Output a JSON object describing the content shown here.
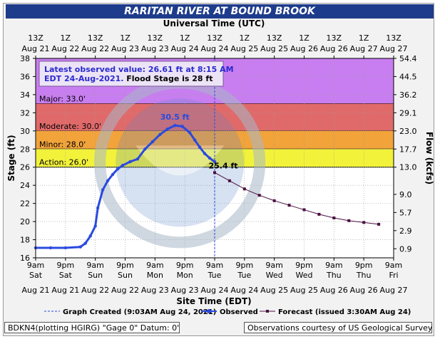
{
  "title": "RARITAN RIVER AT BOUND BROOK",
  "top_axis_title": "Universal Time (UTC)",
  "bottom_axis_title": "Site Time (EDT)",
  "left_axis_title": "Stage (ft)",
  "right_axis_title": "Flow (kcfs)",
  "annotation": {
    "line1": "Latest observed value: 26.61 ft at 8:15 AM",
    "line2_a": "EDT 24-Aug-2021. ",
    "line2_b": "Flood Stage is 28 ft"
  },
  "bands": [
    {
      "label": "Major: 33.0'",
      "from": 33,
      "to": 38,
      "color": "#c87ef0"
    },
    {
      "label": "Moderate: 30.0'",
      "from": 30,
      "to": 33,
      "color": "#e06a6a"
    },
    {
      "label": "Minor: 28.0'",
      "from": 28,
      "to": 30,
      "color": "#f2a33a"
    },
    {
      "label": "Action: 26.0'",
      "from": 26,
      "to": 28,
      "color": "#f2f23a"
    }
  ],
  "peak_label": "30.5 ft",
  "forecast_start_label": "25.4 ft",
  "legend": {
    "graph_created": "Graph Created (9:03AM Aug 24, 2021)",
    "observed": "Observed",
    "forecast": "Forecast (issued 3:30AM Aug 24)"
  },
  "footer_left": "BDKN4(plotting HGIRG) \"Gage 0\" Datum: 0'",
  "footer_right": "Observations courtesy of US Geological Survey",
  "colors": {
    "observed": "#2a4adf",
    "forecast": "#4a1040",
    "title_bg": "#1e3c8c"
  },
  "chart_data": {
    "type": "line",
    "xlabel": "Site Time (EDT)",
    "ylabel": "Stage (ft)",
    "ylabel_right": "Flow (kcfs)",
    "ylim": [
      16,
      38
    ],
    "x_range_hours_from_aug21_9am": [
      0,
      144
    ],
    "y_ticks": [
      16,
      18,
      20,
      22,
      24,
      26,
      28,
      30,
      32,
      34,
      36,
      38
    ],
    "right_ticks": [
      {
        "stage": 17.0,
        "label": "0.9"
      },
      {
        "stage": 19.0,
        "label": "2.9"
      },
      {
        "stage": 21.0,
        "label": "5.7"
      },
      {
        "stage": 23.0,
        "label": "9.0"
      },
      {
        "stage": 26.0,
        "label": "13.0"
      },
      {
        "stage": 28.0,
        "label": "17.7"
      },
      {
        "stage": 30.0,
        "label": "23.0"
      },
      {
        "stage": 32.0,
        "label": "29.1"
      },
      {
        "stage": 34.0,
        "label": "36.2"
      },
      {
        "stage": 36.0,
        "label": "44.5"
      },
      {
        "stage": 38.0,
        "label": "54.4"
      }
    ],
    "bottom_ticks": [
      {
        "time": "9am",
        "day": "Sat",
        "date": "Aug 21"
      },
      {
        "time": "9pm",
        "day": "Sat",
        "date": "Aug 21"
      },
      {
        "time": "9am",
        "day": "Sun",
        "date": "Aug 22"
      },
      {
        "time": "9pm",
        "day": "Sun",
        "date": "Aug 22"
      },
      {
        "time": "9am",
        "day": "Mon",
        "date": "Aug 23"
      },
      {
        "time": "9pm",
        "day": "Mon",
        "date": "Aug 23"
      },
      {
        "time": "9am",
        "day": "Tue",
        "date": "Aug 24"
      },
      {
        "time": "9pm",
        "day": "Tue",
        "date": "Aug 24"
      },
      {
        "time": "9am",
        "day": "Wed",
        "date": "Aug 25"
      },
      {
        "time": "9pm",
        "day": "Wed",
        "date": "Aug 25"
      },
      {
        "time": "9am",
        "day": "Thu",
        "date": "Aug 26"
      },
      {
        "time": "9pm",
        "day": "Thu",
        "date": "Aug 26"
      },
      {
        "time": "9am",
        "day": "Fri",
        "date": "Aug 27"
      }
    ],
    "top_ticks": [
      {
        "time": "13Z",
        "date": "Aug 21"
      },
      {
        "time": "1Z",
        "date": "Aug 22"
      },
      {
        "time": "13Z",
        "date": "Aug 22"
      },
      {
        "time": "1Z",
        "date": "Aug 23"
      },
      {
        "time": "13Z",
        "date": "Aug 23"
      },
      {
        "time": "1Z",
        "date": "Aug 24"
      },
      {
        "time": "13Z",
        "date": "Aug 24"
      },
      {
        "time": "1Z",
        "date": "Aug 25"
      },
      {
        "time": "13Z",
        "date": "Aug 25"
      },
      {
        "time": "1Z",
        "date": "Aug 26"
      },
      {
        "time": "13Z",
        "date": "Aug 26"
      },
      {
        "time": "1Z",
        "date": "Aug 27"
      },
      {
        "time": "13Z",
        "date": "Aug 27"
      }
    ],
    "graph_created_hour": 72,
    "series": [
      {
        "name": "Observed",
        "x_hours": [
          0,
          6,
          12,
          18,
          20,
          22,
          24,
          25,
          27,
          29,
          31,
          33,
          35,
          38,
          41,
          44,
          47,
          50,
          53,
          56,
          59,
          62,
          64,
          66,
          68,
          70,
          72
        ],
        "y": [
          17.1,
          17.1,
          17.1,
          17.2,
          17.6,
          18.4,
          19.5,
          21.5,
          23.5,
          24.5,
          25.2,
          25.8,
          26.2,
          26.6,
          26.9,
          28.0,
          28.8,
          29.6,
          30.2,
          30.6,
          30.5,
          29.8,
          29.0,
          28.2,
          27.5,
          27.0,
          26.6
        ]
      },
      {
        "name": "Forecast",
        "x_hours": [
          72,
          78,
          84,
          90,
          96,
          102,
          108,
          114,
          120,
          126,
          132,
          138
        ],
        "y": [
          25.4,
          24.5,
          23.6,
          22.9,
          22.3,
          21.8,
          21.3,
          20.8,
          20.4,
          20.1,
          19.9,
          19.7
        ]
      }
    ]
  }
}
